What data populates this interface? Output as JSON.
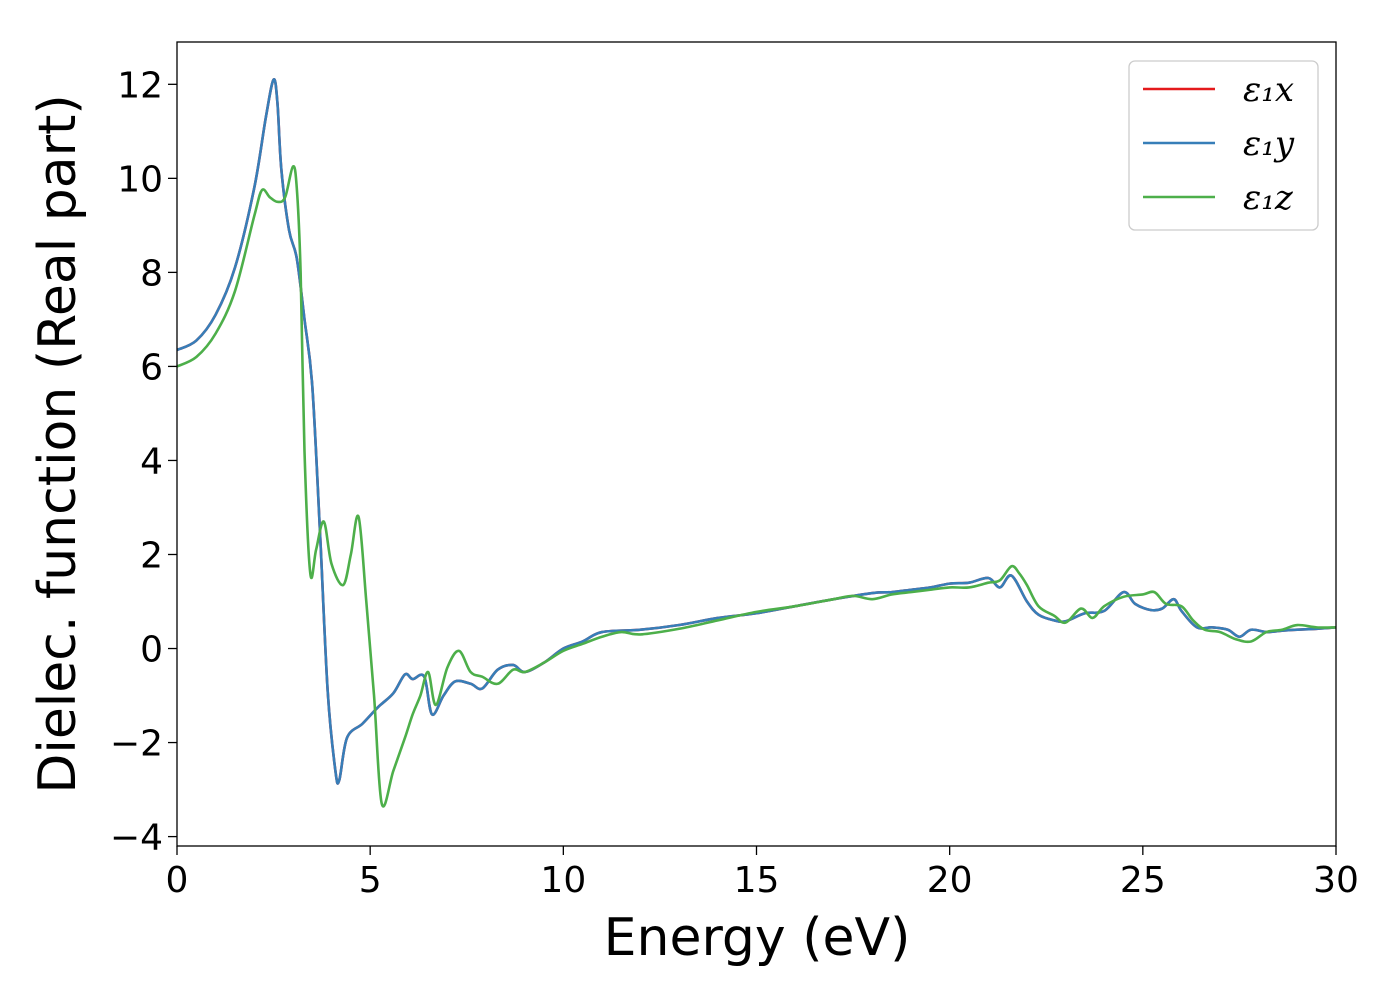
{
  "chart_data": {
    "type": "line",
    "title": "",
    "xlabel": "Energy (eV)",
    "ylabel": "Dielec. function (Real part)",
    "xlim": [
      0,
      30
    ],
    "ylim": [
      -4.2,
      12.9
    ],
    "xticks": [
      0,
      5,
      10,
      15,
      20,
      25,
      30
    ],
    "xtick_labels": [
      "0",
      "5",
      "10",
      "15",
      "20",
      "25",
      "30"
    ],
    "yticks": [
      -4,
      -2,
      0,
      2,
      4,
      6,
      8,
      10,
      12
    ],
    "ytick_labels": [
      "−4",
      "−2",
      "0",
      "2",
      "4",
      "6",
      "8",
      "10",
      "12"
    ],
    "grid": false,
    "legend_position": "top-right",
    "series": [
      {
        "name": "ε₁x",
        "color": "#e41a1c",
        "x": [
          0,
          0.5,
          1.0,
          1.5,
          2.0,
          2.3,
          2.5,
          2.6,
          2.7,
          2.9,
          3.1,
          3.3,
          3.5,
          3.7,
          3.9,
          4.1,
          4.2,
          4.4,
          4.8,
          5.2,
          5.6,
          5.9,
          6.1,
          6.4,
          6.6,
          6.9,
          7.2,
          7.6,
          7.9,
          8.3,
          8.7,
          9.0,
          9.5,
          10.0,
          10.5,
          11.0,
          12.0,
          13.0,
          14.0,
          15.0,
          16.0,
          17.0,
          18.0,
          18.5,
          19.0,
          19.5,
          20.0,
          20.5,
          21.0,
          21.3,
          21.6,
          22.0,
          22.3,
          22.7,
          23.0,
          23.5,
          24.0,
          24.5,
          24.8,
          25.2,
          25.5,
          25.8,
          26.0,
          26.4,
          26.8,
          27.2,
          27.5,
          27.8,
          28.2,
          28.6,
          29.0,
          29.5,
          30.0
        ],
        "y": [
          6.35,
          6.55,
          7.1,
          8.1,
          9.8,
          11.3,
          12.1,
          11.6,
          10.2,
          8.9,
          8.3,
          7.0,
          5.6,
          2.5,
          -0.9,
          -2.6,
          -2.8,
          -1.9,
          -1.6,
          -1.25,
          -0.95,
          -0.55,
          -0.65,
          -0.6,
          -1.4,
          -1.0,
          -0.7,
          -0.75,
          -0.85,
          -0.45,
          -0.35,
          -0.5,
          -0.3,
          0.0,
          0.15,
          0.35,
          0.4,
          0.5,
          0.65,
          0.75,
          0.9,
          1.05,
          1.18,
          1.2,
          1.25,
          1.3,
          1.38,
          1.4,
          1.5,
          1.3,
          1.55,
          1.0,
          0.72,
          0.6,
          0.58,
          0.75,
          0.8,
          1.2,
          0.95,
          0.82,
          0.85,
          1.05,
          0.8,
          0.45,
          0.45,
          0.4,
          0.25,
          0.4,
          0.35,
          0.38,
          0.4,
          0.42,
          0.45
        ]
      },
      {
        "name": "ε₁y",
        "color": "#377eb8",
        "x": [
          0,
          0.5,
          1.0,
          1.5,
          2.0,
          2.3,
          2.5,
          2.6,
          2.7,
          2.9,
          3.1,
          3.3,
          3.5,
          3.7,
          3.9,
          4.1,
          4.2,
          4.4,
          4.8,
          5.2,
          5.6,
          5.9,
          6.1,
          6.4,
          6.6,
          6.9,
          7.2,
          7.6,
          7.9,
          8.3,
          8.7,
          9.0,
          9.5,
          10.0,
          10.5,
          11.0,
          12.0,
          13.0,
          14.0,
          15.0,
          16.0,
          17.0,
          18.0,
          18.5,
          19.0,
          19.5,
          20.0,
          20.5,
          21.0,
          21.3,
          21.6,
          22.0,
          22.3,
          22.7,
          23.0,
          23.5,
          24.0,
          24.5,
          24.8,
          25.2,
          25.5,
          25.8,
          26.0,
          26.4,
          26.8,
          27.2,
          27.5,
          27.8,
          28.2,
          28.6,
          29.0,
          29.5,
          30.0
        ],
        "y": [
          6.35,
          6.55,
          7.1,
          8.1,
          9.8,
          11.3,
          12.1,
          11.6,
          10.2,
          8.9,
          8.3,
          7.0,
          5.6,
          2.5,
          -0.9,
          -2.6,
          -2.8,
          -1.9,
          -1.6,
          -1.25,
          -0.95,
          -0.55,
          -0.65,
          -0.6,
          -1.4,
          -1.0,
          -0.7,
          -0.75,
          -0.85,
          -0.45,
          -0.35,
          -0.5,
          -0.3,
          0.0,
          0.15,
          0.35,
          0.4,
          0.5,
          0.65,
          0.75,
          0.9,
          1.05,
          1.18,
          1.2,
          1.25,
          1.3,
          1.38,
          1.4,
          1.5,
          1.3,
          1.55,
          1.0,
          0.72,
          0.6,
          0.58,
          0.75,
          0.8,
          1.2,
          0.95,
          0.82,
          0.85,
          1.05,
          0.8,
          0.45,
          0.45,
          0.4,
          0.25,
          0.4,
          0.35,
          0.38,
          0.4,
          0.42,
          0.45
        ]
      },
      {
        "name": "ε₁z",
        "color": "#4daf4a",
        "x": [
          0,
          0.5,
          1.0,
          1.5,
          2.0,
          2.2,
          2.4,
          2.6,
          2.8,
          3.0,
          3.1,
          3.2,
          3.3,
          3.45,
          3.6,
          3.8,
          4.0,
          4.3,
          4.5,
          4.7,
          4.9,
          5.1,
          5.3,
          5.6,
          5.9,
          6.1,
          6.3,
          6.5,
          6.7,
          7.0,
          7.3,
          7.6,
          7.9,
          8.3,
          8.7,
          9.0,
          9.5,
          10.0,
          10.5,
          11.0,
          11.5,
          12.0,
          13.0,
          14.0,
          15.0,
          16.0,
          17.0,
          17.5,
          18.0,
          18.5,
          19.0,
          19.5,
          20.0,
          20.5,
          21.0,
          21.3,
          21.6,
          21.8,
          22.0,
          22.3,
          22.7,
          23.0,
          23.4,
          23.7,
          24.0,
          24.5,
          25.0,
          25.3,
          25.6,
          26.0,
          26.3,
          26.6,
          27.0,
          27.4,
          27.8,
          28.2,
          28.6,
          29.0,
          29.5,
          30.0
        ],
        "y": [
          6.0,
          6.2,
          6.7,
          7.6,
          9.2,
          9.75,
          9.6,
          9.5,
          9.6,
          10.25,
          9.8,
          8.0,
          4.2,
          1.6,
          2.1,
          2.7,
          1.8,
          1.35,
          2.0,
          2.8,
          1.0,
          -1.0,
          -3.3,
          -2.6,
          -1.9,
          -1.4,
          -1.0,
          -0.5,
          -1.2,
          -0.4,
          -0.05,
          -0.5,
          -0.6,
          -0.75,
          -0.45,
          -0.5,
          -0.3,
          -0.05,
          0.1,
          0.25,
          0.35,
          0.3,
          0.42,
          0.6,
          0.78,
          0.9,
          1.05,
          1.12,
          1.05,
          1.15,
          1.2,
          1.25,
          1.3,
          1.3,
          1.4,
          1.45,
          1.75,
          1.6,
          1.35,
          0.9,
          0.7,
          0.55,
          0.85,
          0.65,
          0.9,
          1.1,
          1.15,
          1.2,
          0.95,
          0.9,
          0.6,
          0.4,
          0.35,
          0.2,
          0.15,
          0.35,
          0.4,
          0.5,
          0.45,
          0.45
        ]
      }
    ]
  }
}
